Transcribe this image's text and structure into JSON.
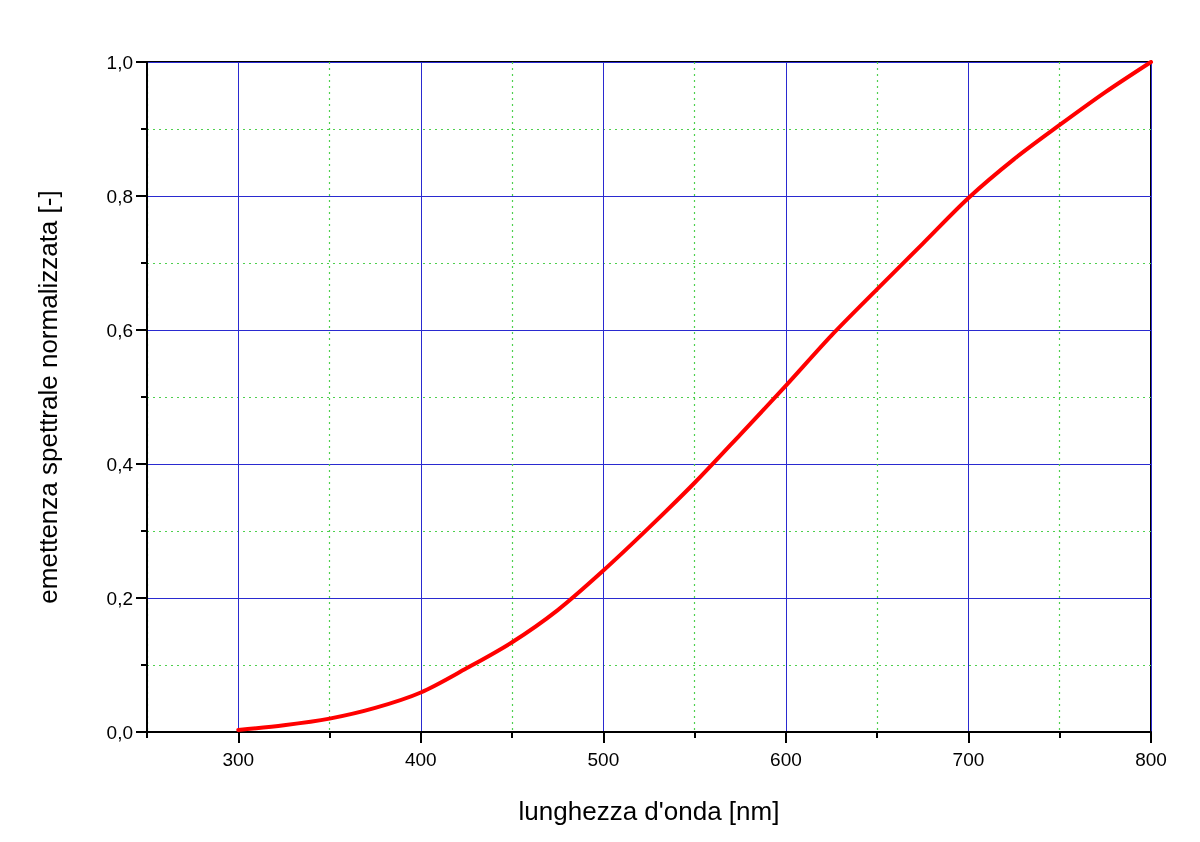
{
  "chart_data": {
    "type": "line",
    "xlabel": "lunghezza d'onda [nm]",
    "ylabel": "emettenza spettrale normalizzata [-]",
    "x": [
      300,
      325,
      350,
      375,
      400,
      425,
      450,
      475,
      500,
      525,
      550,
      575,
      600,
      625,
      650,
      675,
      700,
      725,
      750,
      775,
      800
    ],
    "values": [
      0.003,
      0.01,
      0.02,
      0.036,
      0.059,
      0.095,
      0.134,
      0.182,
      0.241,
      0.305,
      0.372,
      0.444,
      0.517,
      0.592,
      0.661,
      0.729,
      0.797,
      0.855,
      0.906,
      0.955,
      1.0
    ],
    "color": "#ff0000",
    "xlim": [
      250,
      800
    ],
    "xticks": [
      {
        "value": 250,
        "label": null
      },
      300,
      {
        "value": 350,
        "label": null
      },
      400,
      {
        "value": 450,
        "label": null
      },
      500,
      {
        "value": 550,
        "label": null
      },
      600,
      {
        "value": 650,
        "label": null
      },
      700,
      {
        "value": 750,
        "label": null
      },
      800
    ],
    "ylim": [
      0,
      1
    ],
    "yticks": [
      {
        "value": 0,
        "label": "0,0"
      },
      {
        "value": 0.1,
        "label": null
      },
      {
        "value": 0.2,
        "label": "0,2"
      },
      {
        "value": 0.3,
        "label": null
      },
      {
        "value": 0.4,
        "label": "0,4"
      },
      {
        "value": 0.5,
        "label": null
      },
      {
        "value": 0.6,
        "label": "0,6"
      },
      {
        "value": 0.7,
        "label": null
      },
      {
        "value": 0.8,
        "label": "0,8"
      },
      {
        "value": 0.9,
        "label": null
      },
      {
        "value": 1.0,
        "label": "1,0"
      }
    ],
    "grid": true,
    "marker": "none",
    "line_style": "solid"
  }
}
